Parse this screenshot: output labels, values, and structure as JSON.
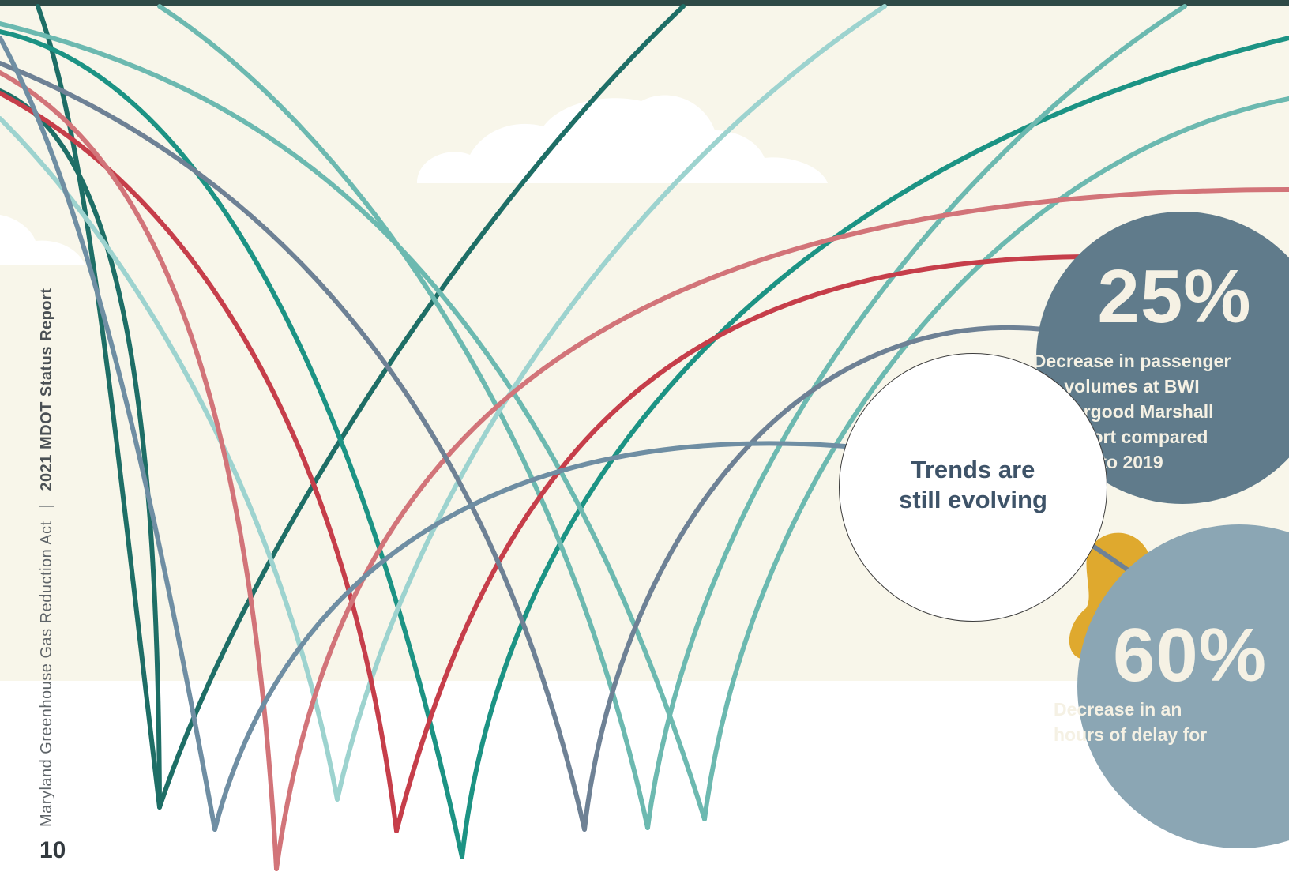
{
  "colors": {
    "background_band": "#f8f6ea",
    "top_bar": "#2e4a47",
    "cloud": "#ffffff",
    "stat1_fill": "#607b8b",
    "stat2_fill": "#8ba6b4",
    "blob": "#dfa92e",
    "trends_text": "#3e5368",
    "line_palette": [
      "#1e6e66",
      "#1c9384",
      "#6cb9b0",
      "#9dd3cf",
      "#c63e4a",
      "#d27479",
      "#6e8195",
      "#6f8ea3"
    ]
  },
  "stats": {
    "passengers": {
      "value": "25%",
      "description": "Decrease in passenger\nvolumes at BWI\nThurgood Marshall\nAirport compared\nto 2019"
    },
    "delay": {
      "value": "60%",
      "description": "Decrease in an\nhours of delay for"
    }
  },
  "trends": {
    "text": "Trends are\nstill evolving"
  },
  "side_caption": {
    "title": "Maryland Greenhouse Gas Reduction Act",
    "separator": "|",
    "report": "2021 MDOT Status Report"
  },
  "page_number": "10"
}
